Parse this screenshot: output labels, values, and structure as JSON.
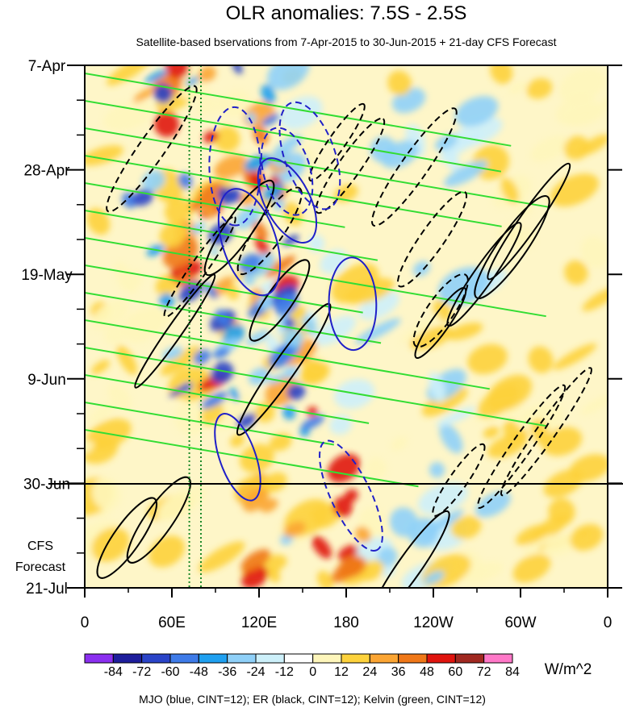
{
  "chart_data": {
    "type": "heatmap",
    "title": "OLR anomalies: 7.5S - 2.5S",
    "subtitle": "Satellite-based bservations from 7-Apr-2015 to 30-Jun-2015 + 21-day CFS Forecast",
    "x_ticks": [
      "0",
      "60E",
      "120E",
      "180",
      "120W",
      "60W",
      "0"
    ],
    "x_tick_degrees": [
      0,
      60,
      120,
      180,
      240,
      300,
      360
    ],
    "y_ticks": [
      "7-Apr",
      "28-Apr",
      "19-May",
      "9-Jun",
      "30-Jun",
      "21-Jul"
    ],
    "y_tick_days": [
      0,
      21,
      42,
      63,
      84,
      105
    ],
    "x_range_degrees": [
      0,
      360
    ],
    "y_range_days": [
      0,
      105
    ],
    "observation_end_label": "30-Jun",
    "forecast_label": [
      "CFS",
      "Forecast"
    ],
    "colorbar": {
      "levels": [
        "-84",
        "-72",
        "-60",
        "-48",
        "-36",
        "-24",
        "-12",
        "0",
        "12",
        "24",
        "36",
        "48",
        "60",
        "72",
        "84"
      ],
      "colors": [
        "#8b2ff0",
        "#1e1e9c",
        "#2a44c8",
        "#3e7be8",
        "#1fa0f0",
        "#8fd0f8",
        "#cdf0fa",
        "#ffffff",
        "#fef6bb",
        "#fdd23c",
        "#fba533",
        "#f07818",
        "#e0140e",
        "#a02820",
        "#ff78c8"
      ],
      "units": "W/m^2"
    },
    "footnote": "MJO (blue, CINT=12); ER (black, CINT=12); Kelvin (green, CINT=12)",
    "series_colors": {
      "mjo": "#2020c8",
      "er": "#000000",
      "kelvin": "#33dd33"
    },
    "reference_longitudes_degrees": [
      72,
      80
    ]
  }
}
